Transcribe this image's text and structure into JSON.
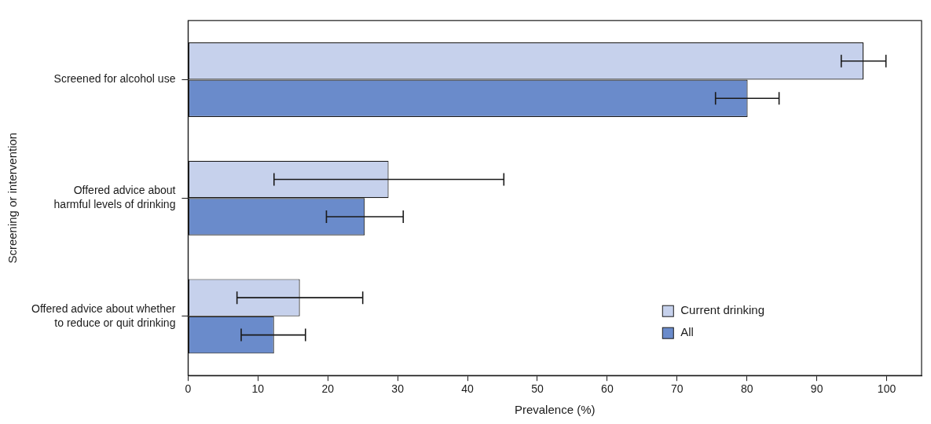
{
  "chart_data": {
    "type": "bar",
    "orientation": "horizontal",
    "categories": [
      "Screened for alcohol use",
      "Offered advice about\nharmful levels of drinking",
      "Offered advice about whether\nto reduce or quit drinking"
    ],
    "series": [
      {
        "name": "Current drinking",
        "color": "#c6d1ec",
        "values": [
          96.7,
          28.7,
          16.0
        ],
        "error_bars": [
          [
            93.5,
            99.9
          ],
          [
            12.3,
            45.2
          ],
          [
            7.0,
            25.0
          ]
        ]
      },
      {
        "name": "All",
        "color": "#6a8bcb",
        "values": [
          80.1,
          25.3,
          12.3
        ],
        "error_bars": [
          [
            75.5,
            84.6
          ],
          [
            19.8,
            30.8
          ],
          [
            7.6,
            16.8
          ]
        ]
      }
    ],
    "x_label": "Prevalence (%)",
    "y_label": "Screening or intervention",
    "xlim": [
      0,
      105
    ],
    "xticks": [
      0,
      10,
      20,
      30,
      40,
      50,
      60,
      70,
      80,
      90,
      100
    ],
    "grid": false,
    "legend": "lower right"
  }
}
